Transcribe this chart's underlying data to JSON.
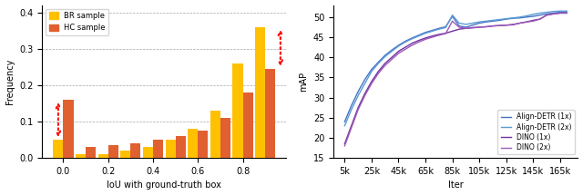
{
  "hist_iou_bins": [
    0.0,
    0.1,
    0.2,
    0.3,
    0.4,
    0.5,
    0.6,
    0.7,
    0.8,
    0.9
  ],
  "br_freq": [
    0.05,
    0.01,
    0.01,
    0.02,
    0.03,
    0.05,
    0.08,
    0.13,
    0.26,
    0.36
  ],
  "hc_freq": [
    0.16,
    0.03,
    0.035,
    0.04,
    0.05,
    0.06,
    0.075,
    0.11,
    0.18,
    0.245
  ],
  "br_color": "#FFC000",
  "hc_color": "#E06030",
  "hist_xlabel": "IoU with ground-truth box",
  "hist_ylabel": "Frequency",
  "hist_ylim": [
    0,
    0.42
  ],
  "hist_yticks": [
    0,
    0.1,
    0.2,
    0.3,
    0.4
  ],
  "hist_xticks": [
    0.0,
    0.2,
    0.4,
    0.6,
    0.8
  ],
  "bar_width": 0.045,
  "iter_x": [
    5000,
    10000,
    15000,
    20000,
    25000,
    30000,
    35000,
    40000,
    45000,
    50000,
    55000,
    60000,
    65000,
    70000,
    75000,
    80000,
    85000,
    90000,
    95000,
    100000,
    105000,
    110000,
    115000,
    120000,
    125000,
    130000,
    135000,
    140000,
    145000,
    150000,
    155000,
    160000,
    165000,
    170000
  ],
  "align1x": [
    24.0,
    28.0,
    31.5,
    34.5,
    37.0,
    38.8,
    40.5,
    41.8,
    43.0,
    44.0,
    44.8,
    45.5,
    46.2,
    46.7,
    47.2,
    47.6,
    50.2,
    47.8,
    47.5,
    48.0,
    48.5,
    48.8,
    49.0,
    49.2,
    49.5,
    49.7,
    49.8,
    50.0,
    50.2,
    50.5,
    50.8,
    51.0,
    51.2,
    51.3
  ],
  "align2x": [
    23.0,
    27.0,
    30.5,
    33.5,
    36.5,
    38.5,
    40.2,
    41.5,
    42.8,
    43.8,
    44.6,
    45.3,
    46.0,
    46.5,
    47.0,
    47.4,
    50.5,
    48.5,
    48.2,
    48.5,
    48.8,
    49.0,
    49.2,
    49.4,
    49.6,
    49.8,
    50.0,
    50.3,
    50.7,
    51.0,
    51.2,
    51.4,
    51.5,
    51.5
  ],
  "dino1x": [
    18.5,
    23.0,
    27.5,
    31.0,
    34.0,
    36.5,
    38.5,
    40.0,
    41.5,
    42.5,
    43.5,
    44.2,
    44.8,
    45.3,
    45.7,
    46.0,
    46.5,
    47.0,
    47.2,
    47.4,
    47.5,
    47.6,
    47.8,
    47.9,
    48.0,
    48.1,
    48.5,
    48.8,
    49.2,
    49.5,
    50.5,
    50.8,
    51.0,
    51.0
  ],
  "dino2x": [
    18.0,
    22.5,
    27.0,
    30.5,
    33.5,
    36.0,
    38.0,
    39.5,
    41.0,
    42.0,
    43.0,
    43.8,
    44.5,
    45.0,
    45.5,
    45.9,
    49.0,
    47.5,
    47.2,
    47.3,
    47.5,
    47.6,
    47.8,
    47.9,
    48.0,
    48.2,
    48.5,
    48.8,
    49.0,
    49.5,
    50.5,
    50.8,
    51.0,
    51.0
  ],
  "line_align1x_color": "#4472C4",
  "line_align2x_color": "#5B9BD5",
  "line_dino1x_color": "#7030A0",
  "line_dino2x_color": "#9B59B6",
  "map_xlabel": "Iter",
  "map_ylabel": "mAP",
  "map_ylim": [
    15,
    53
  ],
  "map_yticks": [
    15,
    20,
    25,
    30,
    35,
    40,
    45,
    50
  ],
  "map_xticks": [
    5000,
    25000,
    45000,
    65000,
    85000,
    105000,
    125000,
    145000,
    165000
  ],
  "map_xticklabels": [
    "5k",
    "25k",
    "45k",
    "65k",
    "85k",
    "105k",
    "125k",
    "145k",
    "165k"
  ],
  "arrow_color": "red"
}
